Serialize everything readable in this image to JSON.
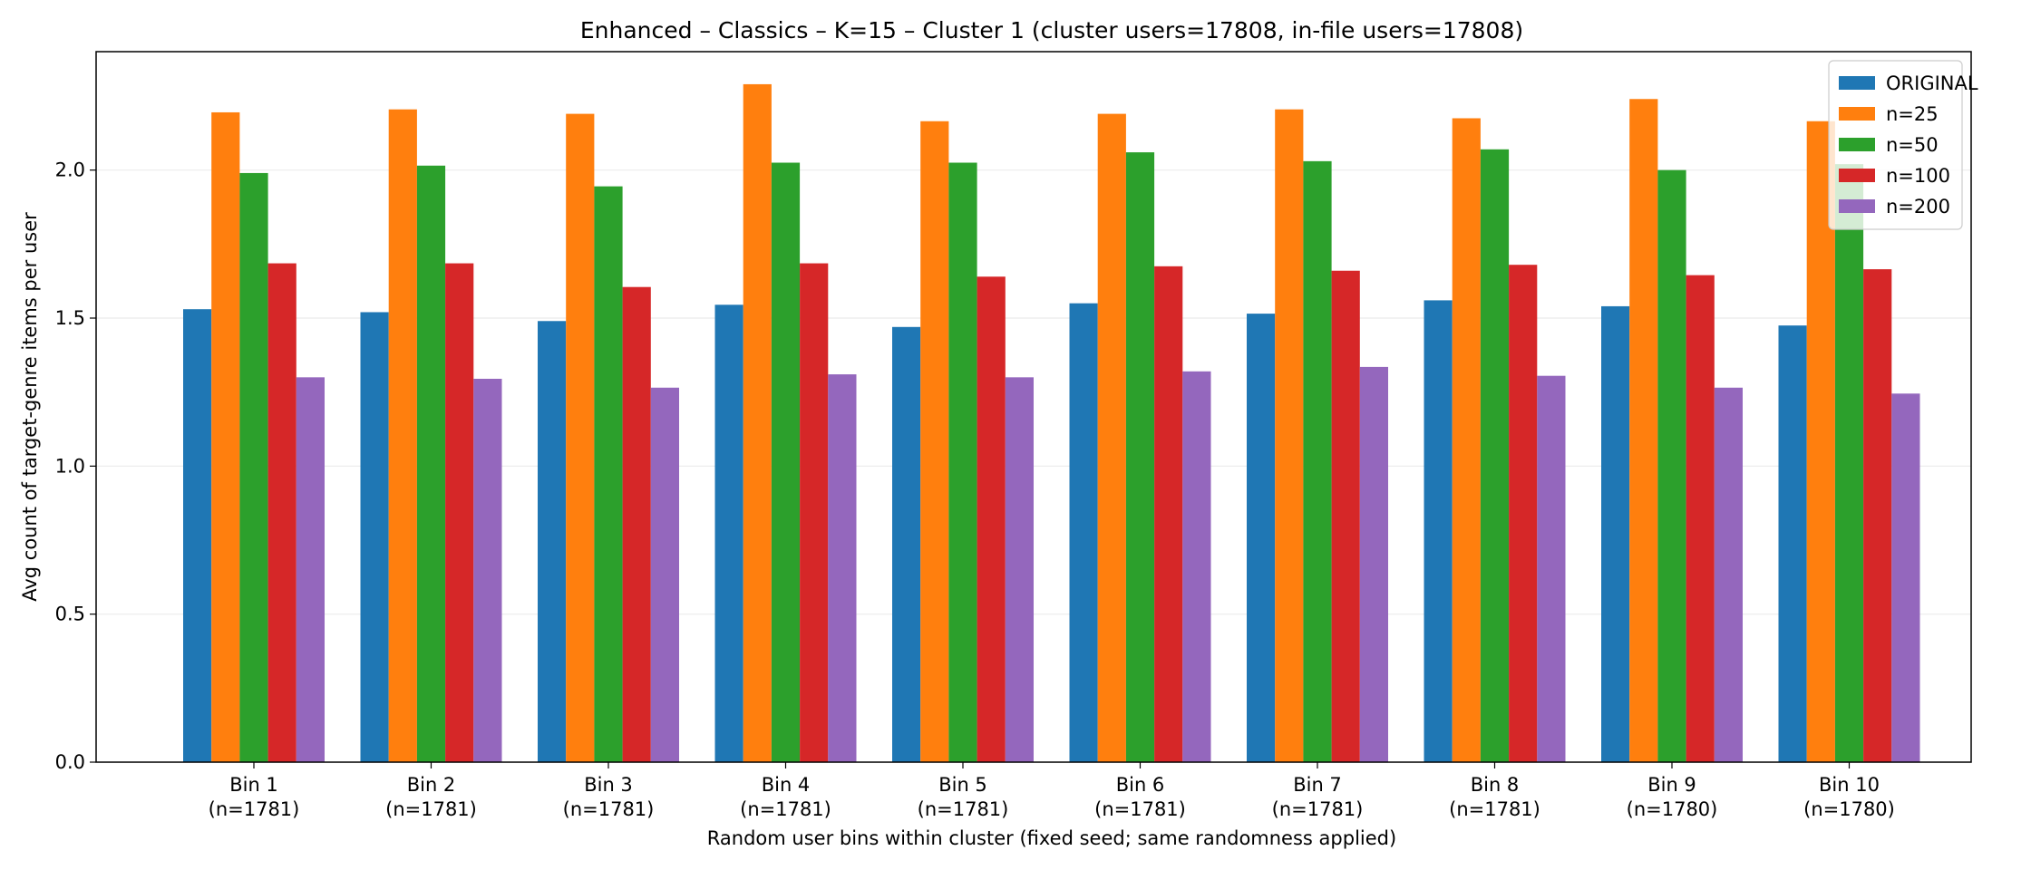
{
  "chart_data": {
    "type": "bar",
    "title": "Enhanced – Classics – K=15 – Cluster 1 (cluster users=17808, in-file users=17808)",
    "xlabel": "Random user bins within cluster (fixed seed; same randomness applied)",
    "ylabel": "Avg count of target-genre items per user",
    "categories": [
      {
        "line1": "Bin 1",
        "line2": "(n=1781)"
      },
      {
        "line1": "Bin 2",
        "line2": "(n=1781)"
      },
      {
        "line1": "Bin 3",
        "line2": "(n=1781)"
      },
      {
        "line1": "Bin 4",
        "line2": "(n=1781)"
      },
      {
        "line1": "Bin 5",
        "line2": "(n=1781)"
      },
      {
        "line1": "Bin 6",
        "line2": "(n=1781)"
      },
      {
        "line1": "Bin 7",
        "line2": "(n=1781)"
      },
      {
        "line1": "Bin 8",
        "line2": "(n=1781)"
      },
      {
        "line1": "Bin 9",
        "line2": "(n=1780)"
      },
      {
        "line1": "Bin 10",
        "line2": "(n=1780)"
      }
    ],
    "series": [
      {
        "name": "ORIGINAL",
        "color": "#1f77b4",
        "values": [
          1.53,
          1.52,
          1.49,
          1.545,
          1.47,
          1.55,
          1.515,
          1.56,
          1.54,
          1.475
        ]
      },
      {
        "name": "n=25",
        "color": "#ff7f0e",
        "values": [
          2.195,
          2.205,
          2.19,
          2.29,
          2.165,
          2.19,
          2.205,
          2.175,
          2.24,
          2.165
        ]
      },
      {
        "name": "n=50",
        "color": "#2ca02c",
        "values": [
          1.99,
          2.015,
          1.945,
          2.025,
          2.025,
          2.06,
          2.03,
          2.07,
          2.0,
          2.02
        ]
      },
      {
        "name": "n=100",
        "color": "#d62728",
        "values": [
          1.685,
          1.685,
          1.605,
          1.685,
          1.64,
          1.675,
          1.66,
          1.68,
          1.645,
          1.665
        ]
      },
      {
        "name": "n=200",
        "color": "#9467bd",
        "values": [
          1.3,
          1.295,
          1.265,
          1.31,
          1.3,
          1.32,
          1.335,
          1.305,
          1.265,
          1.245
        ]
      }
    ],
    "yticks": [
      "0.0",
      "0.5",
      "1.0",
      "1.5",
      "2.0"
    ],
    "ylim": [
      0,
      2.4
    ],
    "grid": "y",
    "legend_position": "top-right"
  }
}
